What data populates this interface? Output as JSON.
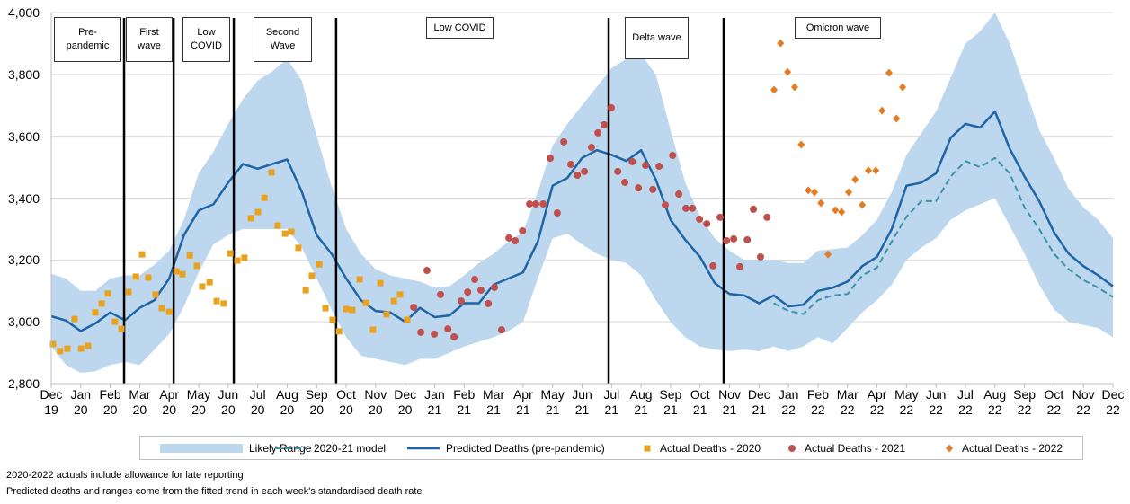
{
  "chart_data": {
    "type": "line",
    "xlim": [
      0,
      36
    ],
    "ylim": [
      2800,
      4000
    ],
    "yticks": [
      {
        "value": 2800,
        "label": "2,800"
      },
      {
        "value": 3000,
        "label": "3,000"
      },
      {
        "value": 3200,
        "label": "3,200"
      },
      {
        "value": 3400,
        "label": "3,400"
      },
      {
        "value": 3600,
        "label": "3,600"
      },
      {
        "value": 3800,
        "label": "3,800"
      },
      {
        "value": 4000,
        "label": "4,000"
      }
    ],
    "xticks": [
      {
        "value": 0,
        "label": "Dec 19"
      },
      {
        "value": 1,
        "label": "Jan 20"
      },
      {
        "value": 2,
        "label": "Feb 20"
      },
      {
        "value": 3,
        "label": "Mar 20"
      },
      {
        "value": 4,
        "label": "Apr 20"
      },
      {
        "value": 5,
        "label": "May 20"
      },
      {
        "value": 6,
        "label": "Jun 20"
      },
      {
        "value": 7,
        "label": "Jul 20"
      },
      {
        "value": 8,
        "label": "Aug 20"
      },
      {
        "value": 9,
        "label": "Sep 20"
      },
      {
        "value": 10,
        "label": "Oct 20"
      },
      {
        "value": 11,
        "label": "Nov 20"
      },
      {
        "value": 12,
        "label": "Dec 20"
      },
      {
        "value": 13,
        "label": "Jan 21"
      },
      {
        "value": 14,
        "label": "Feb 21"
      },
      {
        "value": 15,
        "label": "Mar 21"
      },
      {
        "value": 16,
        "label": "Apr 21"
      },
      {
        "value": 17,
        "label": "May 21"
      },
      {
        "value": 18,
        "label": "Jun 21"
      },
      {
        "value": 19,
        "label": "Jul 21"
      },
      {
        "value": 20,
        "label": "Aug 21"
      },
      {
        "value": 21,
        "label": "Sep 21"
      },
      {
        "value": 22,
        "label": "Oct 21"
      },
      {
        "value": 23,
        "label": "Nov 21"
      },
      {
        "value": 24,
        "label": "Dec 21"
      },
      {
        "value": 25,
        "label": "Jan 22"
      },
      {
        "value": 26,
        "label": "Feb 22"
      },
      {
        "value": 27,
        "label": "Mar 22"
      },
      {
        "value": 28,
        "label": "Apr 22"
      },
      {
        "value": 29,
        "label": "May 22"
      },
      {
        "value": 30,
        "label": "Jun 22"
      },
      {
        "value": 31,
        "label": "Jul 22"
      },
      {
        "value": 32,
        "label": "Aug 22"
      },
      {
        "value": 33,
        "label": "Sep 22"
      },
      {
        "value": 34,
        "label": "Oct 22"
      },
      {
        "value": 35,
        "label": "Nov 22"
      },
      {
        "value": 36,
        "label": "Dec 22"
      }
    ],
    "grid": true,
    "legend": "bottom",
    "x": [
      0,
      0.5,
      1,
      1.5,
      2,
      2.5,
      3,
      3.5,
      4,
      4.5,
      5,
      5.5,
      6,
      6.5,
      7,
      7.5,
      8,
      8.5,
      9,
      9.5,
      10,
      10.5,
      11,
      11.5,
      12,
      12.5,
      13,
      13.5,
      14,
      14.5,
      15,
      15.5,
      16,
      16.5,
      17,
      17.5,
      18,
      18.5,
      19,
      19.5,
      20,
      20.5,
      21,
      21.5,
      22,
      22.5,
      23,
      23.5,
      24,
      24.5,
      25,
      25.5,
      26,
      26.5,
      27,
      27.5,
      28,
      28.5,
      29,
      29.5,
      30,
      30.5,
      31,
      31.5,
      32,
      32.5,
      33,
      33.5,
      34,
      34.5,
      35,
      35.5,
      36
    ],
    "series": [
      {
        "name": "Likely Range",
        "type": "band",
        "color": "#bdd7ee",
        "upper": [
          3155,
          3140,
          3100,
          3100,
          3140,
          3150,
          3150,
          3185,
          3230,
          3330,
          3480,
          3550,
          3640,
          3720,
          3780,
          3810,
          3850,
          3780,
          3600,
          3440,
          3300,
          3220,
          3170,
          3150,
          3140,
          3130,
          3110,
          3115,
          3150,
          3190,
          3220,
          3260,
          3290,
          3420,
          3570,
          3640,
          3700,
          3760,
          3820,
          3850,
          3865,
          3800,
          3620,
          3450,
          3340,
          3270,
          3230,
          3200,
          3200,
          3200,
          3190,
          3190,
          3230,
          3235,
          3240,
          3280,
          3330,
          3420,
          3540,
          3610,
          3680,
          3790,
          3900,
          3940,
          4000,
          3900,
          3760,
          3620,
          3530,
          3430,
          3370,
          3330,
          3270
        ],
        "lower": [
          2920,
          2860,
          2835,
          2840,
          2860,
          2870,
          2860,
          2910,
          2960,
          3050,
          3160,
          3250,
          3280,
          3300,
          3300,
          3300,
          3300,
          3240,
          3140,
          3040,
          2950,
          2890,
          2880,
          2870,
          2860,
          2880,
          2880,
          2900,
          2920,
          2935,
          2950,
          2970,
          3000,
          3140,
          3270,
          3285,
          3250,
          3220,
          3200,
          3190,
          3150,
          3070,
          3000,
          2950,
          2920,
          2910,
          2905,
          2910,
          2905,
          2920,
          2905,
          2920,
          2950,
          2930,
          2980,
          3030,
          3070,
          3120,
          3200,
          3240,
          3270,
          3330,
          3360,
          3380,
          3400,
          3310,
          3220,
          3120,
          3040,
          3000,
          2990,
          2980,
          2950
        ]
      },
      {
        "name": "2020-21 model",
        "type": "line",
        "dash": true,
        "color": "#3b93a8",
        "x": [
          24.5,
          25,
          25.5,
          26,
          26.5,
          27,
          27.5,
          28,
          28.5,
          29,
          29.5,
          30,
          30.5,
          31,
          31.5,
          32,
          32.5,
          33,
          33.5,
          34,
          34.5,
          35,
          35.5,
          36
        ],
        "values": [
          3060,
          3035,
          3025,
          3070,
          3085,
          3090,
          3150,
          3175,
          3260,
          3340,
          3390,
          3390,
          3470,
          3520,
          3500,
          3530,
          3480,
          3370,
          3300,
          3220,
          3170,
          3135,
          3110,
          3080
        ]
      },
      {
        "name": "Predicted Deaths (pre-pandemic)",
        "type": "line",
        "color": "#1f64a4",
        "values": [
          3018,
          3004,
          2970,
          2995,
          3030,
          3005,
          3045,
          3070,
          3140,
          3280,
          3360,
          3380,
          3450,
          3510,
          3495,
          3510,
          3525,
          3420,
          3280,
          3220,
          3140,
          3070,
          3035,
          3030,
          3000,
          3045,
          3015,
          3020,
          3060,
          3060,
          3120,
          3140,
          3160,
          3260,
          3440,
          3465,
          3530,
          3555,
          3540,
          3520,
          3555,
          3460,
          3330,
          3265,
          3210,
          3125,
          3090,
          3085,
          3060,
          3085,
          3050,
          3055,
          3100,
          3110,
          3130,
          3180,
          3210,
          3300,
          3440,
          3450,
          3480,
          3595,
          3640,
          3628,
          3680,
          3560,
          3470,
          3390,
          3290,
          3220,
          3180,
          3150,
          3115
        ]
      },
      {
        "name": "Actual Deaths - 2020",
        "type": "scatter",
        "marker": "square",
        "color": "#e9a21f",
        "x": [
          0.06,
          0.3,
          0.55,
          0.79,
          1.01,
          1.25,
          1.49,
          1.71,
          1.92,
          2.16,
          2.38,
          2.62,
          2.87,
          3.08,
          3.29,
          3.54,
          3.75,
          4.0,
          4.24,
          4.45,
          4.7,
          4.94,
          5.12,
          5.37,
          5.61,
          5.85,
          6.07,
          6.31,
          6.55,
          6.77,
          7.01,
          7.23,
          7.47,
          7.68,
          7.93,
          8.14,
          8.38,
          8.63,
          8.84,
          9.09,
          9.3,
          9.54,
          9.76,
          10.0,
          10.21,
          10.46,
          10.67,
          10.91,
          11.16,
          11.37,
          11.62,
          11.83,
          12.07
        ],
        "values": [
          2928,
          2905,
          2913,
          3009,
          2913,
          2922,
          3030,
          3059,
          3091,
          3000,
          2977,
          3096,
          3146,
          3218,
          3143,
          3088,
          3044,
          3032,
          3163,
          3154,
          3215,
          3181,
          3114,
          3128,
          3067,
          3059,
          3221,
          3198,
          3207,
          3335,
          3355,
          3401,
          3483,
          3311,
          3285,
          3291,
          3239,
          3102,
          3149,
          3186,
          3044,
          3006,
          2969,
          3041,
          3038,
          3137,
          3061,
          2974,
          3125,
          3024,
          3067,
          3088,
          3006
        ]
      },
      {
        "name": "Actual Deaths - 2021",
        "type": "scatter",
        "marker": "circle",
        "color": "#c0504d",
        "x": [
          12.29,
          12.53,
          12.74,
          12.99,
          13.2,
          13.45,
          13.66,
          13.9,
          14.12,
          14.36,
          14.57,
          14.82,
          15.03,
          15.27,
          15.52,
          15.73,
          15.98,
          16.22,
          16.43,
          16.68,
          16.92,
          17.16,
          17.38,
          17.62,
          17.84,
          18.08,
          18.32,
          18.54,
          18.75,
          18.99,
          19.21,
          19.45,
          19.7,
          19.91,
          20.15,
          20.4,
          20.61,
          20.82,
          21.07,
          21.28,
          21.52,
          21.74,
          21.98,
          22.23,
          22.44,
          22.68,
          22.9,
          23.14,
          23.35,
          23.6,
          23.81,
          24.05,
          24.27
        ],
        "values": [
          3047,
          2966,
          3166,
          2960,
          3088,
          2977,
          2951,
          3067,
          3096,
          3137,
          3102,
          3059,
          3111,
          2974,
          3271,
          3262,
          3294,
          3381,
          3381,
          3381,
          3529,
          3352,
          3582,
          3509,
          3474,
          3486,
          3564,
          3611,
          3637,
          3692,
          3486,
          3451,
          3518,
          3433,
          3506,
          3428,
          3503,
          3378,
          3538,
          3413,
          3367,
          3367,
          3332,
          3317,
          3181,
          3338,
          3262,
          3268,
          3178,
          3265,
          3364,
          3210,
          3338
        ]
      },
      {
        "name": "Actual Deaths - 2022",
        "type": "scatter",
        "marker": "diamond",
        "color": "#e57c24",
        "x": [
          24.51,
          24.73,
          24.97,
          25.21,
          25.43,
          25.67,
          25.88,
          26.1,
          26.34,
          26.59,
          26.8,
          27.04,
          27.26,
          27.5,
          27.71,
          27.96,
          28.17,
          28.41,
          28.66,
          28.87
        ],
        "values": [
          3750,
          3901,
          3808,
          3759,
          3573,
          3425,
          3419,
          3384,
          3218,
          3361,
          3355,
          3419,
          3460,
          3378,
          3489,
          3489,
          3683,
          3805,
          3657,
          3759
        ]
      }
    ],
    "wave_boundaries": [
      2.47,
      4.15,
      6.19,
      9.66,
      18.9,
      22.8
    ],
    "annotations": [
      "Pre-pandemic",
      "First wave",
      "Low COVID",
      "Second Wave",
      "Low COVID",
      "Delta wave",
      "Omicron wave"
    ],
    "notes": [
      "2020-2022  actuals include allowance for late reporting",
      "Predicted deaths and ranges come from the fitted trend in each week's standardised death rate"
    ]
  }
}
